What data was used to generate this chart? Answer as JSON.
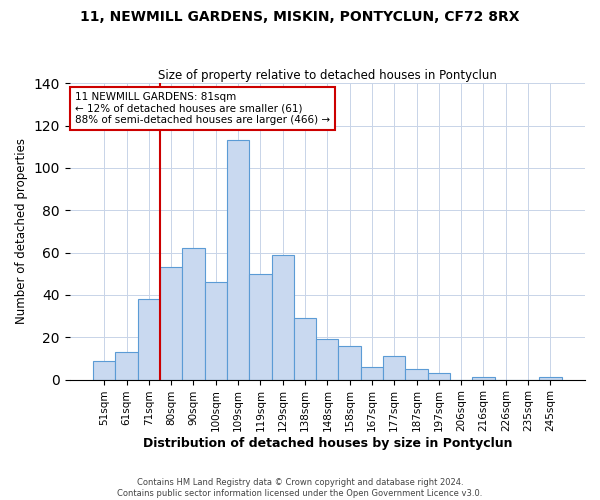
{
  "title": "11, NEWMILL GARDENS, MISKIN, PONTYCLUN, CF72 8RX",
  "subtitle": "Size of property relative to detached houses in Pontyclun",
  "xlabel": "Distribution of detached houses by size in Pontyclun",
  "ylabel": "Number of detached properties",
  "bar_labels": [
    "51sqm",
    "61sqm",
    "71sqm",
    "80sqm",
    "90sqm",
    "100sqm",
    "109sqm",
    "119sqm",
    "129sqm",
    "138sqm",
    "148sqm",
    "158sqm",
    "167sqm",
    "177sqm",
    "187sqm",
    "197sqm",
    "206sqm",
    "216sqm",
    "226sqm",
    "235sqm",
    "245sqm"
  ],
  "bar_values": [
    9,
    13,
    38,
    53,
    62,
    46,
    113,
    50,
    59,
    29,
    19,
    16,
    6,
    11,
    5,
    3,
    0,
    1,
    0,
    0,
    1
  ],
  "bar_color": "#c9d9f0",
  "bar_edge_color": "#5b9bd5",
  "vline_x_index": 3,
  "vline_color": "#cc0000",
  "ylim": [
    0,
    140
  ],
  "annotation_title": "11 NEWMILL GARDENS: 81sqm",
  "annotation_line1": "← 12% of detached houses are smaller (61)",
  "annotation_line2": "88% of semi-detached houses are larger (466) →",
  "annotation_box_facecolor": "#ffffff",
  "annotation_box_edgecolor": "#cc0000",
  "footer1": "Contains HM Land Registry data © Crown copyright and database right 2024.",
  "footer2": "Contains public sector information licensed under the Open Government Licence v3.0."
}
